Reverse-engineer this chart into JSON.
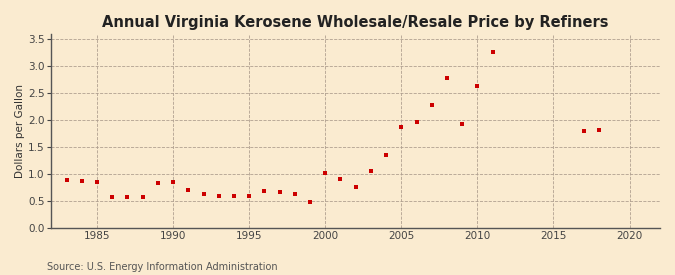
{
  "title": "Annual Virginia Kerosene Wholesale/Resale Price by Refiners",
  "ylabel": "Dollars per Gallon",
  "source": "Source: U.S. Energy Information Administration",
  "background_color": "#faebd0",
  "plot_bg_color": "#faebd0",
  "marker_color": "#cc0000",
  "grid_color": "#b0a090",
  "spine_color": "#555555",
  "xlim": [
    1982,
    2022
  ],
  "ylim": [
    0.0,
    3.6
  ],
  "xticks": [
    1985,
    1990,
    1995,
    2000,
    2005,
    2010,
    2015,
    2020
  ],
  "yticks": [
    0.0,
    0.5,
    1.0,
    1.5,
    2.0,
    2.5,
    3.0,
    3.5
  ],
  "years": [
    1983,
    1984,
    1985,
    1986,
    1987,
    1988,
    1989,
    1990,
    1991,
    1992,
    1993,
    1994,
    1995,
    1996,
    1997,
    1998,
    1999,
    2000,
    2001,
    2002,
    2003,
    2004,
    2005,
    2006,
    2007,
    2008,
    2009,
    2010,
    2011,
    2017,
    2018
  ],
  "values": [
    0.89,
    0.88,
    0.85,
    0.57,
    0.58,
    0.57,
    0.84,
    0.85,
    0.7,
    0.63,
    0.6,
    0.6,
    0.6,
    0.68,
    0.67,
    0.63,
    0.48,
    1.02,
    0.9,
    0.76,
    1.06,
    1.35,
    1.87,
    1.97,
    2.29,
    2.78,
    1.93,
    2.63,
    3.27,
    1.79,
    1.82
  ]
}
